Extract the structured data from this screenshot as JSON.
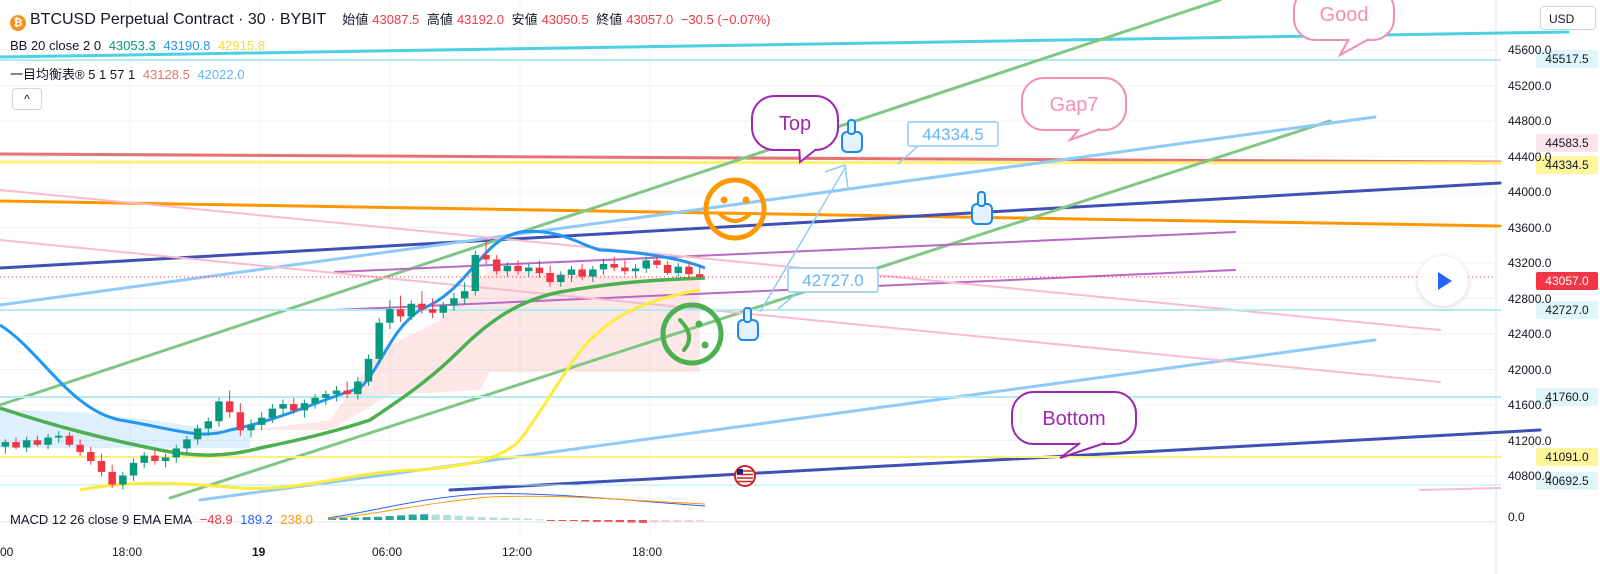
{
  "header": {
    "symbol": "BTCUSD Perpetual Contract · 30 · BYBIT",
    "open_label": "始値",
    "open": "43087.5",
    "high_label": "高値",
    "high": "43192.0",
    "low_label": "安値",
    "low": "43050.5",
    "close_label": "終値",
    "close": "43057.0",
    "change": "−30.5 (−0.07%)"
  },
  "indicators": {
    "bb": {
      "label": "BB 20 close 2 0",
      "basis": "43053.3",
      "upper": "43190.8",
      "lower": "42915.8"
    },
    "ichimoku": {
      "label": "一目均衡表® 5 1 57 1",
      "v1": "43128.5",
      "v2": "42022.0"
    },
    "macd": {
      "label": "MACD 12 26 close 9 EMA EMA",
      "hist": "−48.9",
      "macd": "189.2",
      "signal": "238.0"
    }
  },
  "controls": {
    "currency": "USD",
    "collapse_icon": "chevron-up-icon",
    "play_icon": "play-icon"
  },
  "annotations": {
    "top": "Top",
    "bottom": "Bottom",
    "good": "Good",
    "gap": "Gap7",
    "callout_high": "44334.5",
    "callout_low": "42727.0"
  },
  "colors": {
    "up": "#089981",
    "down": "#f23645",
    "bb_basis": "#2196f3",
    "bb_band": "#4caf50",
    "yellow": "#ffeb3b",
    "orange": "#ff9800",
    "green_line": "#81c784",
    "blue_line": "#90caf9",
    "navy": "#3f51b5",
    "purple": "#ba68c8",
    "pink": "#f8bbd0",
    "cyan": "#4dd0e1"
  },
  "chart_data": {
    "type": "candlestick",
    "y_axis": {
      "ylim": [
        40600,
        45700
      ],
      "ticks": [
        "45600.0",
        "45200.0",
        "44800.0",
        "44400.0",
        "44000.0",
        "43600.0",
        "43200.0",
        "42800.0",
        "42400.0",
        "42000.0",
        "41600.0",
        "41200.0",
        "40800.0"
      ]
    },
    "x_axis": {
      "ticks": [
        "00",
        "18:00",
        "19",
        "06:00",
        "12:00",
        "18:00"
      ]
    },
    "macd_axis": {
      "tick": "0.0"
    },
    "price_tags": [
      {
        "value": "45517.5",
        "bg": "#e0f7fa",
        "fg": "#131722"
      },
      {
        "value": "44583.5",
        "bg": "#fce4ec",
        "fg": "#131722"
      },
      {
        "value": "44334.5",
        "bg": "#fff59d",
        "fg": "#131722"
      },
      {
        "value": "43057.0",
        "bg": "#f23645",
        "fg": "#ffffff"
      },
      {
        "value": "42727.0",
        "bg": "#e0f7fa",
        "fg": "#131722"
      },
      {
        "value": "41760.0",
        "bg": "#e0f7fa",
        "fg": "#131722"
      },
      {
        "value": "41091.0",
        "bg": "#fff59d",
        "fg": "#131722"
      },
      {
        "value": "40692.5",
        "bg": "#e0f7fa",
        "fg": "#131722"
      }
    ],
    "candles": [
      [
        41180,
        41260,
        41100,
        41230
      ],
      [
        41230,
        41280,
        41150,
        41170
      ],
      [
        41170,
        41290,
        41120,
        41250
      ],
      [
        41250,
        41300,
        41180,
        41200
      ],
      [
        41200,
        41320,
        41150,
        41280
      ],
      [
        41280,
        41350,
        41220,
        41300
      ],
      [
        41300,
        41340,
        41180,
        41200
      ],
      [
        41200,
        41260,
        41080,
        41120
      ],
      [
        41120,
        41180,
        40980,
        41020
      ],
      [
        41020,
        41100,
        40850,
        40900
      ],
      [
        40900,
        40980,
        40720,
        40760
      ],
      [
        40760,
        40900,
        40700,
        40860
      ],
      [
        40860,
        41050,
        40800,
        41000
      ],
      [
        41000,
        41120,
        40940,
        41080
      ],
      [
        41080,
        41150,
        40980,
        41020
      ],
      [
        41020,
        41100,
        40950,
        41060
      ],
      [
        41060,
        41200,
        41000,
        41160
      ],
      [
        41160,
        41300,
        41100,
        41260
      ],
      [
        41260,
        41420,
        41200,
        41380
      ],
      [
        41380,
        41500,
        41300,
        41460
      ],
      [
        41460,
        41720,
        41400,
        41680
      ],
      [
        41680,
        41800,
        41500,
        41560
      ],
      [
        41560,
        41660,
        41300,
        41360
      ],
      [
        41360,
        41480,
        41280,
        41420
      ],
      [
        41420,
        41560,
        41360,
        41500
      ],
      [
        41500,
        41650,
        41440,
        41600
      ],
      [
        41600,
        41700,
        41520,
        41650
      ],
      [
        41650,
        41720,
        41540,
        41580
      ],
      [
        41580,
        41700,
        41500,
        41660
      ],
      [
        41660,
        41760,
        41600,
        41720
      ],
      [
        41720,
        41800,
        41640,
        41760
      ],
      [
        41760,
        41850,
        41680,
        41800
      ],
      [
        41800,
        41900,
        41720,
        41760
      ],
      [
        41760,
        41950,
        41700,
        41900
      ],
      [
        41900,
        42200,
        41850,
        42150
      ],
      [
        42150,
        42600,
        42100,
        42550
      ],
      [
        42550,
        42800,
        42480,
        42700
      ],
      [
        42700,
        42850,
        42560,
        42620
      ],
      [
        42620,
        42800,
        42580,
        42760
      ],
      [
        42760,
        42900,
        42650,
        42700
      ],
      [
        42700,
        42820,
        42600,
        42660
      ],
      [
        42660,
        42780,
        42600,
        42740
      ],
      [
        42740,
        42880,
        42680,
        42820
      ],
      [
        42820,
        43000,
        42750,
        42900
      ],
      [
        42900,
        43350,
        42850,
        43300
      ],
      [
        43300,
        43480,
        43200,
        43250
      ],
      [
        43250,
        43300,
        43080,
        43120
      ],
      [
        43120,
        43220,
        43060,
        43180
      ],
      [
        43180,
        43240,
        43080,
        43120
      ],
      [
        43120,
        43200,
        43060,
        43160
      ],
      [
        43160,
        43240,
        43050,
        43100
      ],
      [
        43100,
        43180,
        42950,
        43000
      ],
      [
        43000,
        43120,
        42950,
        43080
      ],
      [
        43080,
        43180,
        43000,
        43140
      ],
      [
        43140,
        43200,
        43020,
        43060
      ],
      [
        43060,
        43180,
        43000,
        43140
      ],
      [
        43140,
        43260,
        43080,
        43200
      ],
      [
        43200,
        43280,
        43120,
        43160
      ],
      [
        43160,
        43240,
        43080,
        43120
      ],
      [
        43120,
        43200,
        43050,
        43150
      ],
      [
        43150,
        43280,
        43100,
        43240
      ],
      [
        43240,
        43300,
        43150,
        43190
      ],
      [
        43190,
        43230,
        43080,
        43100
      ],
      [
        43100,
        43210,
        43060,
        43170
      ],
      [
        43170,
        43220,
        43040,
        43087
      ],
      [
        43087,
        43192,
        43050,
        43057
      ]
    ],
    "candles_x_range": [
      0,
      705
    ],
    "macd_hist": [
      10,
      12,
      14,
      16,
      18,
      22,
      26,
      30,
      32,
      30,
      28,
      24,
      20,
      16,
      14,
      12,
      10,
      8,
      4,
      -2,
      -4,
      -6,
      -8,
      -10,
      -10,
      -12,
      -14,
      -16,
      -14,
      -12,
      -10,
      -9,
      -8
    ]
  }
}
